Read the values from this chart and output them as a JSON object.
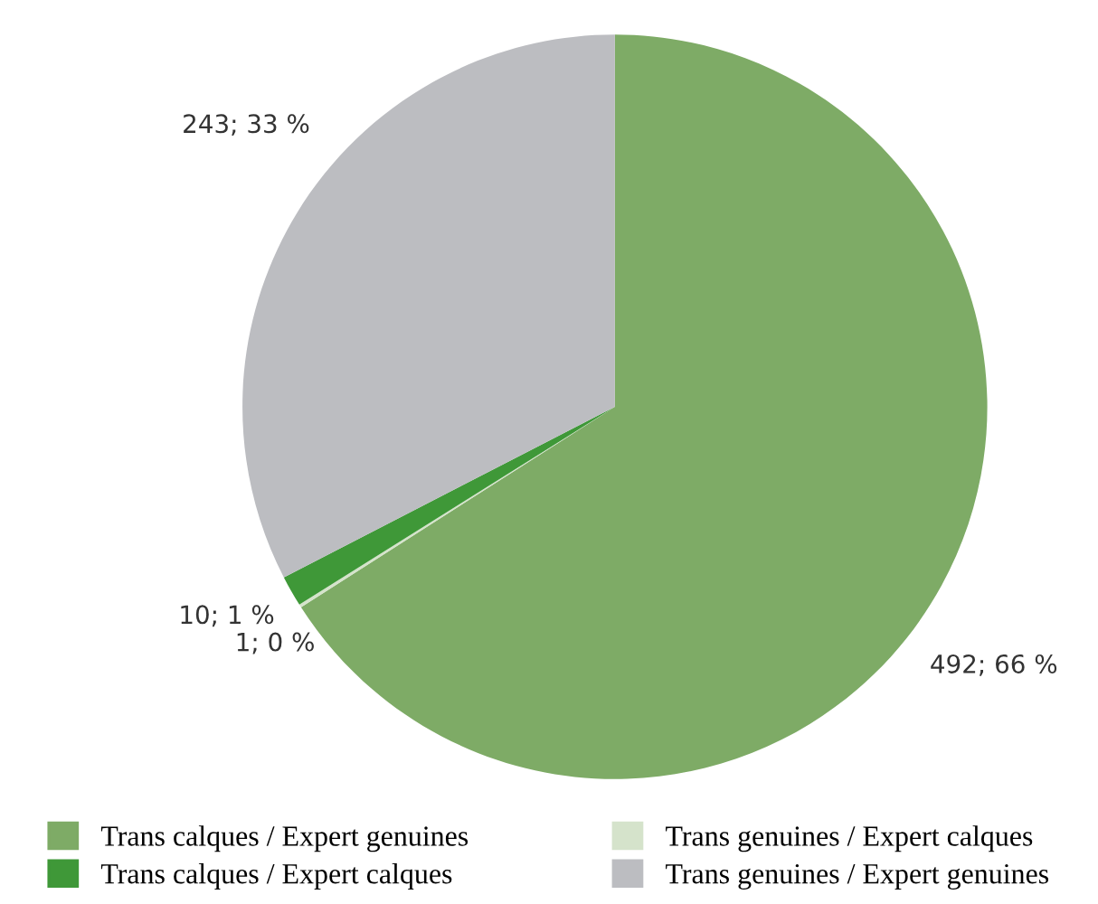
{
  "chart_data": {
    "type": "pie",
    "categories": [
      "Trans calques / Expert genuines",
      "Trans genuines / Expert calques",
      "Trans calques / Expert calques",
      "Trans genuines / Expert genuines"
    ],
    "values": [
      492,
      1,
      10,
      243
    ],
    "colors": [
      "#7eab66",
      "#d5e3cb",
      "#3f9838",
      "#bcbdc1"
    ],
    "value_labels": [
      "492; 66 %",
      "1; 0 %",
      "10; 1 %",
      "243; 33 %"
    ],
    "legend": "bottom"
  }
}
